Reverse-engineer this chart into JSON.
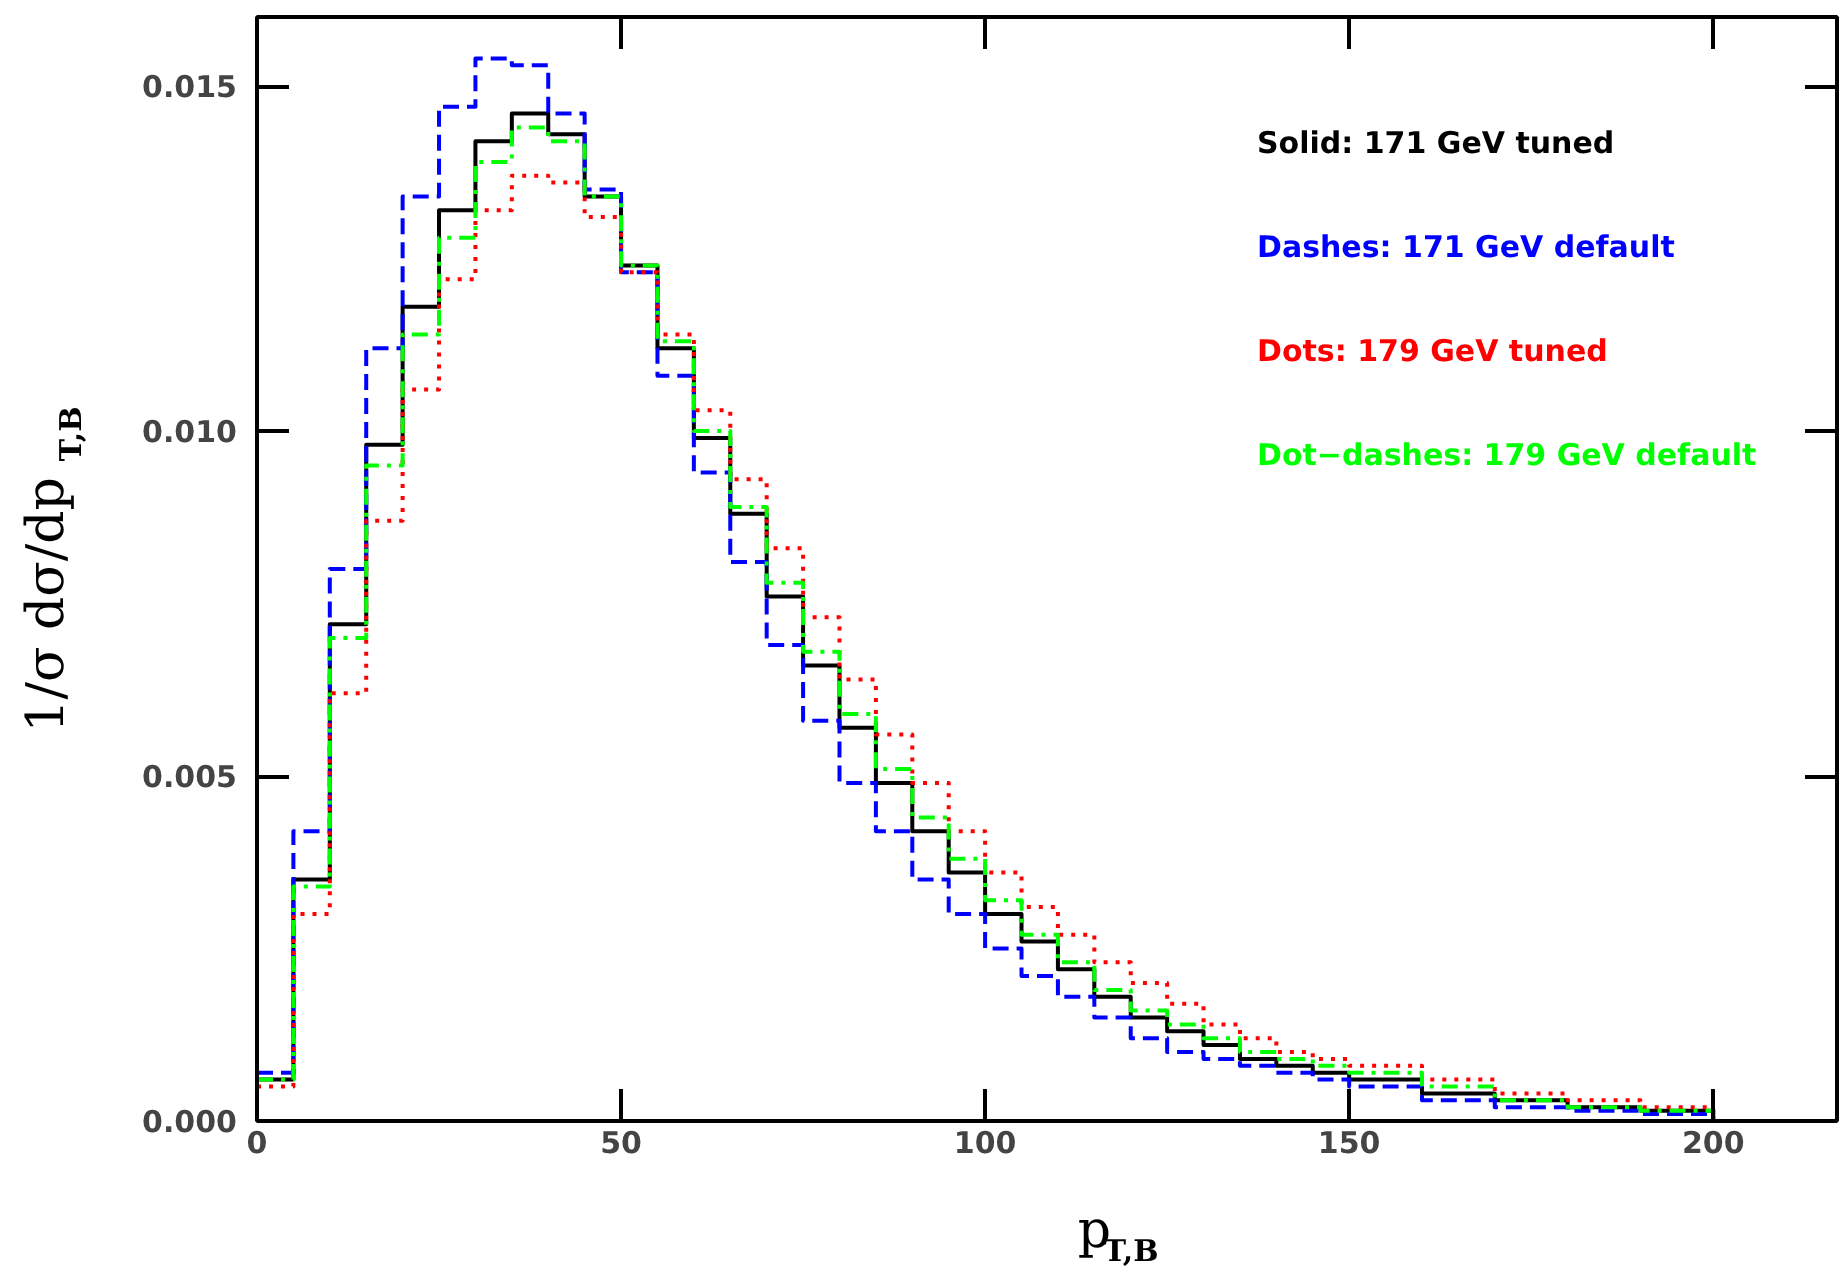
{
  "chart_data": {
    "type": "step",
    "xlabel": "p$_{T,B}$",
    "ylabel": "1/σ dσ/dp$_{T,B}$",
    "x": [
      0,
      5,
      10,
      15,
      20,
      25,
      30,
      35,
      40,
      45,
      50,
      55,
      60,
      65,
      70,
      75,
      80,
      85,
      90,
      95,
      100,
      105,
      110,
      115,
      120,
      125,
      130,
      135,
      140,
      145,
      150,
      160,
      170,
      180,
      190,
      200
    ],
    "series": [
      {
        "name": "Solid: 171 GeV tuned",
        "color": "#000000",
        "line_style": "solid",
        "values": [
          0.0006,
          0.0035,
          0.0072,
          0.0098,
          0.0118,
          0.0132,
          0.0142,
          0.0146,
          0.0143,
          0.0134,
          0.0124,
          0.0112,
          0.0099,
          0.0088,
          0.0076,
          0.0066,
          0.0057,
          0.0049,
          0.0042,
          0.0036,
          0.003,
          0.0026,
          0.0022,
          0.0018,
          0.0015,
          0.0013,
          0.0011,
          0.0009,
          0.0008,
          0.0007,
          0.0006,
          0.0004,
          0.0003,
          0.0002,
          0.00015,
          0
        ]
      },
      {
        "name": "Dashes: 171 GeV default",
        "color": "#0000ff",
        "line_style": "dashed",
        "values": [
          0.0007,
          0.0042,
          0.008,
          0.0112,
          0.0134,
          0.0147,
          0.0154,
          0.0153,
          0.0146,
          0.0135,
          0.0123,
          0.0108,
          0.0094,
          0.0081,
          0.0069,
          0.0058,
          0.0049,
          0.0042,
          0.0035,
          0.003,
          0.0025,
          0.0021,
          0.0018,
          0.0015,
          0.0012,
          0.001,
          0.0009,
          0.0008,
          0.0007,
          0.0006,
          0.0005,
          0.0003,
          0.0002,
          0.00015,
          0.0001,
          0
        ]
      },
      {
        "name": "Dots: 179 GeV tuned",
        "color": "#ff0000",
        "line_style": "dotted",
        "values": [
          0.0005,
          0.003,
          0.0062,
          0.0087,
          0.0106,
          0.0122,
          0.0132,
          0.0137,
          0.0136,
          0.0131,
          0.0123,
          0.0114,
          0.0103,
          0.0093,
          0.0083,
          0.0073,
          0.0064,
          0.0056,
          0.0049,
          0.0042,
          0.0036,
          0.0031,
          0.0027,
          0.0023,
          0.002,
          0.0017,
          0.0014,
          0.0012,
          0.001,
          0.0009,
          0.0008,
          0.0006,
          0.0004,
          0.0003,
          0.0002,
          0
        ]
      },
      {
        "name": "Dot−dashes: 179 GeV default",
        "color": "#00ff00",
        "line_style": "dashdot",
        "values": [
          0.0006,
          0.0034,
          0.007,
          0.0095,
          0.0114,
          0.0128,
          0.0139,
          0.0144,
          0.0142,
          0.0134,
          0.0124,
          0.0113,
          0.01,
          0.0089,
          0.0078,
          0.0068,
          0.0059,
          0.0051,
          0.0044,
          0.0038,
          0.0032,
          0.0027,
          0.0023,
          0.0019,
          0.0016,
          0.0014,
          0.0012,
          0.001,
          0.0009,
          0.0008,
          0.0007,
          0.0005,
          0.0003,
          0.0002,
          0.00015,
          0
        ]
      }
    ],
    "xlim": [
      0,
      217
    ],
    "xticks": [
      0,
      50,
      100,
      150,
      200
    ],
    "ylim": [
      0,
      0.016
    ],
    "yticks": [
      {
        "value": 0,
        "label": "0.000"
      },
      {
        "value": 0.005,
        "label": "0.005"
      },
      {
        "value": 0.01,
        "label": "0.010"
      },
      {
        "value": 0.015,
        "label": "0.015"
      }
    ],
    "legend": "top right",
    "grid": false
  }
}
